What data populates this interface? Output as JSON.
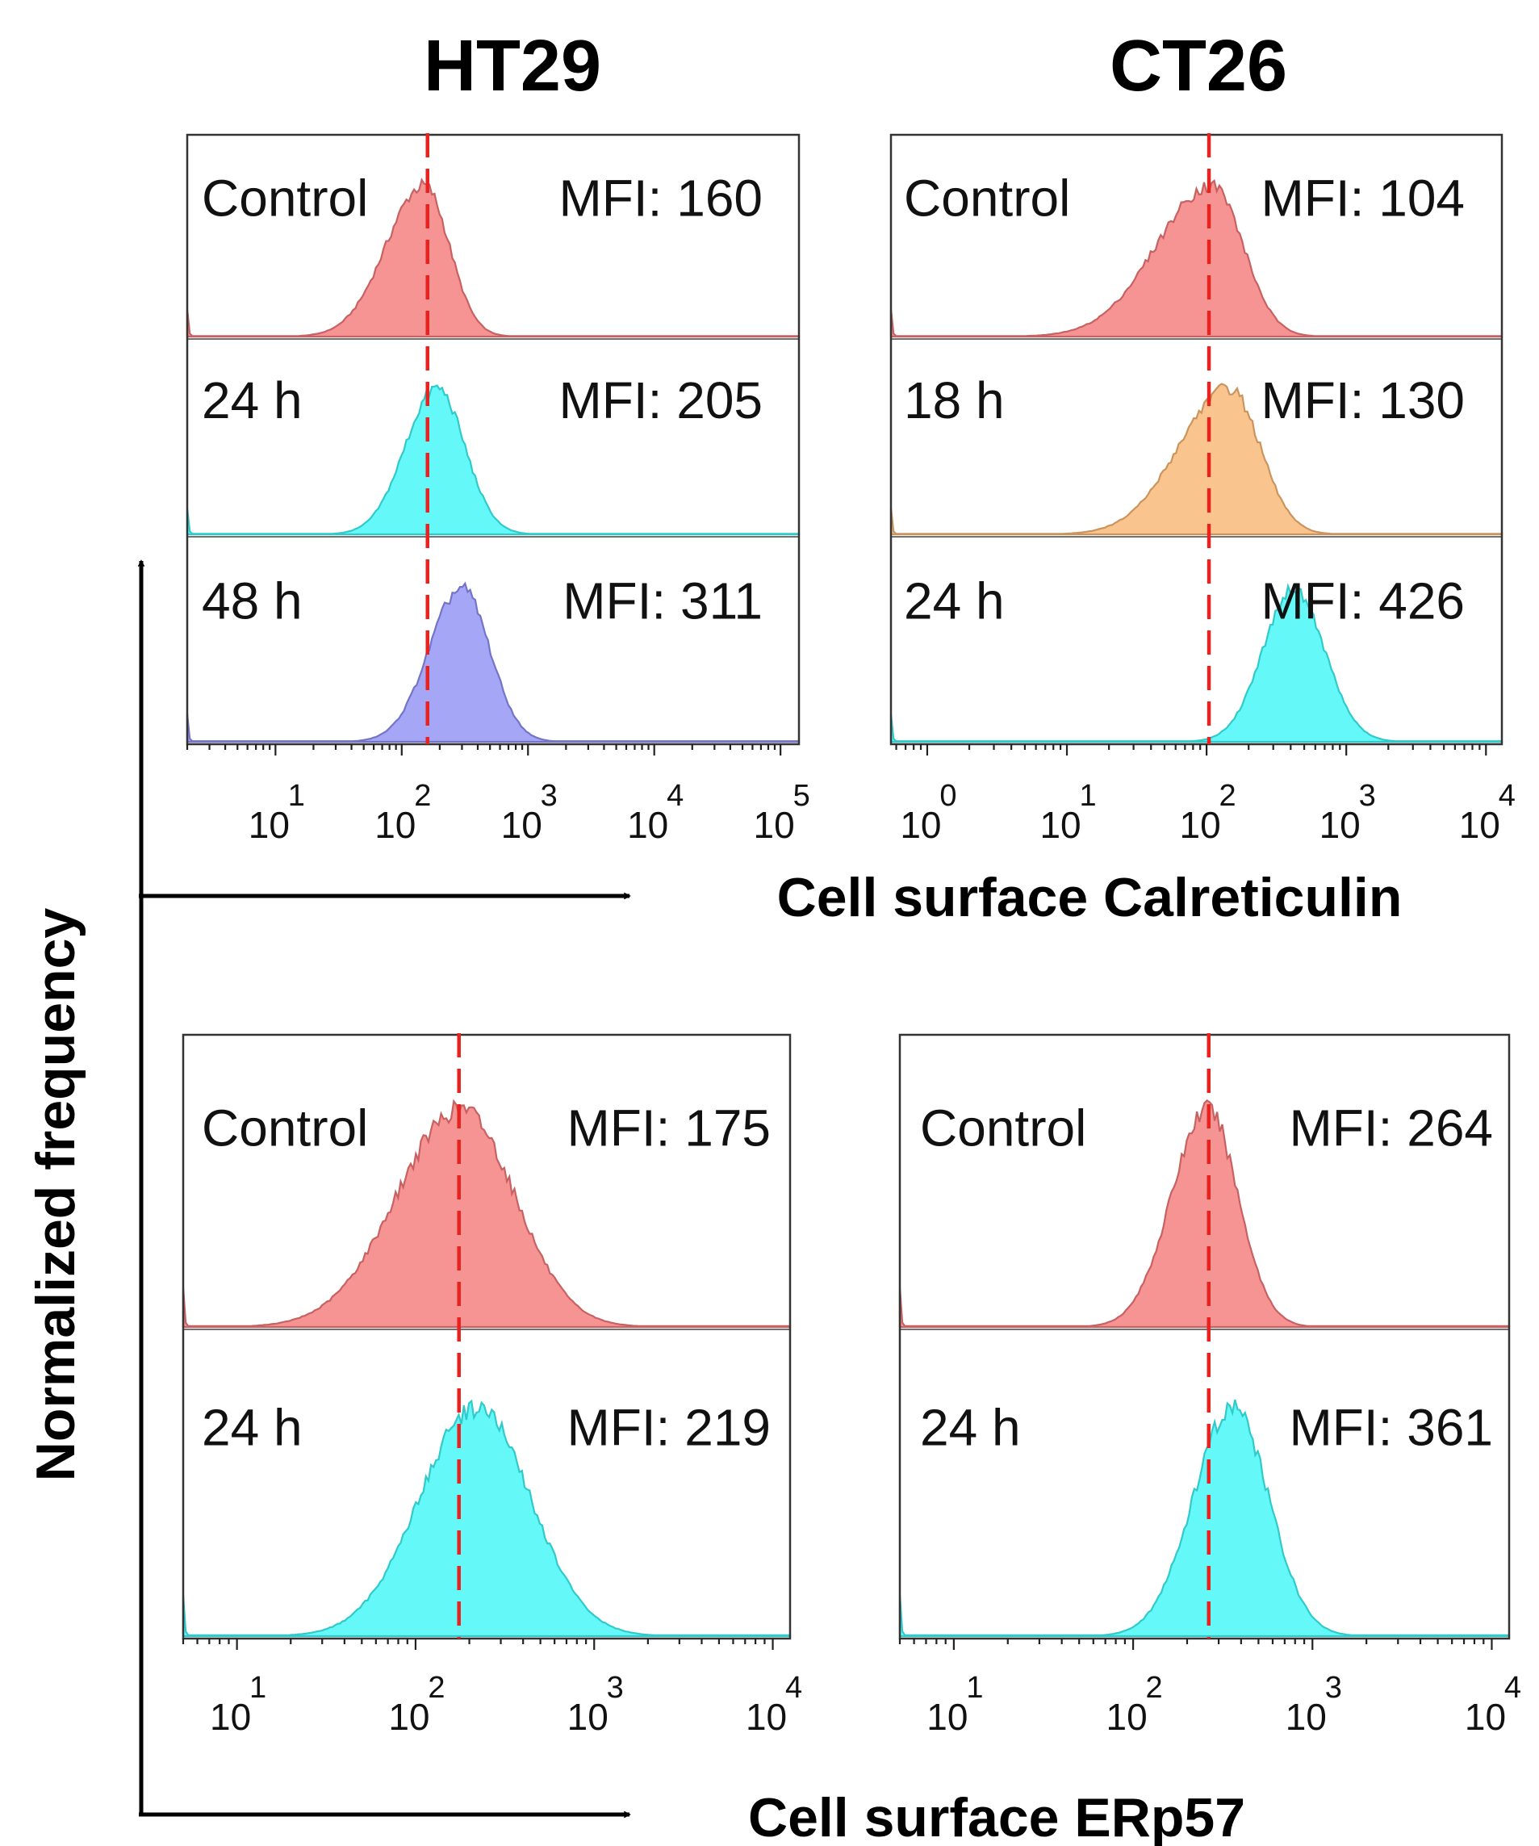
{
  "figure": {
    "column_titles": [
      "HT29",
      "CT26"
    ],
    "y_axis_label": "Normalized frequency",
    "x_axis_label_top": "Cell surface Calreticulin",
    "x_axis_label_bottom": "Cell surface ERp57"
  },
  "colors": {
    "control": "#f47676",
    "cyan": "#3af6f6",
    "orange": "#f8b470",
    "blue": "#8d8df4",
    "median_line": "#e8231f"
  },
  "chart_data": [
    {
      "type": "histogram",
      "title": "HT29",
      "marker": "Cell surface Calreticulin",
      "x_scale": "log10",
      "xlim": [
        2,
        140000
      ],
      "ticks": [
        {
          "base": "10",
          "exp": "1"
        },
        {
          "base": "10",
          "exp": "2"
        },
        {
          "base": "10",
          "exp": "3"
        },
        {
          "base": "10",
          "exp": "4"
        },
        {
          "base": "10",
          "exp": "5"
        }
      ],
      "reference_line": 160,
      "series": [
        {
          "name": "Control",
          "label": "Control",
          "mfi_text": "MFI: 160",
          "mfi": 160,
          "peak": 150,
          "sigma_left": 0.3,
          "sigma_right": 0.2,
          "color": "control"
        },
        {
          "name": "24 h",
          "label": "24 h",
          "mfi_text": "MFI: 205",
          "mfi": 205,
          "peak": 190,
          "sigma_left": 0.25,
          "sigma_right": 0.22,
          "color": "cyan"
        },
        {
          "name": "48 h",
          "label": "48 h",
          "mfi_text": "MFI: 311",
          "mfi": 311,
          "peak": 300,
          "sigma_left": 0.26,
          "sigma_right": 0.22,
          "color": "blue"
        }
      ]
    },
    {
      "type": "histogram",
      "title": "CT26",
      "marker": "Cell surface Calreticulin",
      "x_scale": "log10",
      "xlim": [
        0.55,
        13000
      ],
      "ticks": [
        {
          "base": "10",
          "exp": "0"
        },
        {
          "base": "10",
          "exp": "1"
        },
        {
          "base": "10",
          "exp": "2"
        },
        {
          "base": "10",
          "exp": "3"
        },
        {
          "base": "10",
          "exp": "4"
        }
      ],
      "reference_line": 104,
      "series": [
        {
          "name": "Control",
          "label": "Control",
          "mfi_text": "MFI: 104",
          "mfi": 104,
          "peak": 110,
          "sigma_left": 0.4,
          "sigma_right": 0.22,
          "color": "control"
        },
        {
          "name": "18 h",
          "label": "18 h",
          "mfi_text": "MFI: 130",
          "mfi": 130,
          "peak": 145,
          "sigma_left": 0.36,
          "sigma_right": 0.22,
          "color": "orange"
        },
        {
          "name": "24 h",
          "label": "24 h",
          "mfi_text": "MFI: 426",
          "mfi": 426,
          "peak": 420,
          "sigma_left": 0.22,
          "sigma_right": 0.22,
          "color": "cyan"
        }
      ]
    },
    {
      "type": "histogram",
      "title": "HT29",
      "marker": "Cell surface ERp57",
      "x_scale": "log10",
      "xlim": [
        5,
        12500
      ],
      "ticks": [
        {
          "base": "10",
          "exp": "1"
        },
        {
          "base": "10",
          "exp": "2"
        },
        {
          "base": "10",
          "exp": "3"
        },
        {
          "base": "10",
          "exp": "4"
        }
      ],
      "reference_line": 175,
      "series": [
        {
          "name": "Control",
          "label": "Control",
          "mfi_text": "MFI: 175",
          "mfi": 175,
          "peak": 180,
          "sigma_left": 0.36,
          "sigma_right": 0.3,
          "color": "control"
        },
        {
          "name": "24 h",
          "label": "24 h",
          "mfi_text": "MFI: 219",
          "mfi": 219,
          "peak": 220,
          "sigma_left": 0.32,
          "sigma_right": 0.3,
          "color": "cyan"
        }
      ]
    },
    {
      "type": "histogram",
      "title": "CT26",
      "marker": "Cell surface ERp57",
      "x_scale": "log10",
      "xlim": [
        5,
        12500
      ],
      "ticks": [
        {
          "base": "10",
          "exp": "1"
        },
        {
          "base": "10",
          "exp": "2"
        },
        {
          "base": "10",
          "exp": "3"
        },
        {
          "base": "10",
          "exp": "4"
        }
      ],
      "reference_line": 264,
      "series": [
        {
          "name": "Control",
          "label": "Control",
          "mfi_text": "MFI: 264",
          "mfi": 264,
          "peak": 260,
          "sigma_left": 0.2,
          "sigma_right": 0.17,
          "color": "control"
        },
        {
          "name": "24 h",
          "label": "24 h",
          "mfi_text": "MFI: 361",
          "mfi": 361,
          "peak": 360,
          "sigma_left": 0.22,
          "sigma_right": 0.2,
          "color": "cyan"
        }
      ]
    }
  ]
}
